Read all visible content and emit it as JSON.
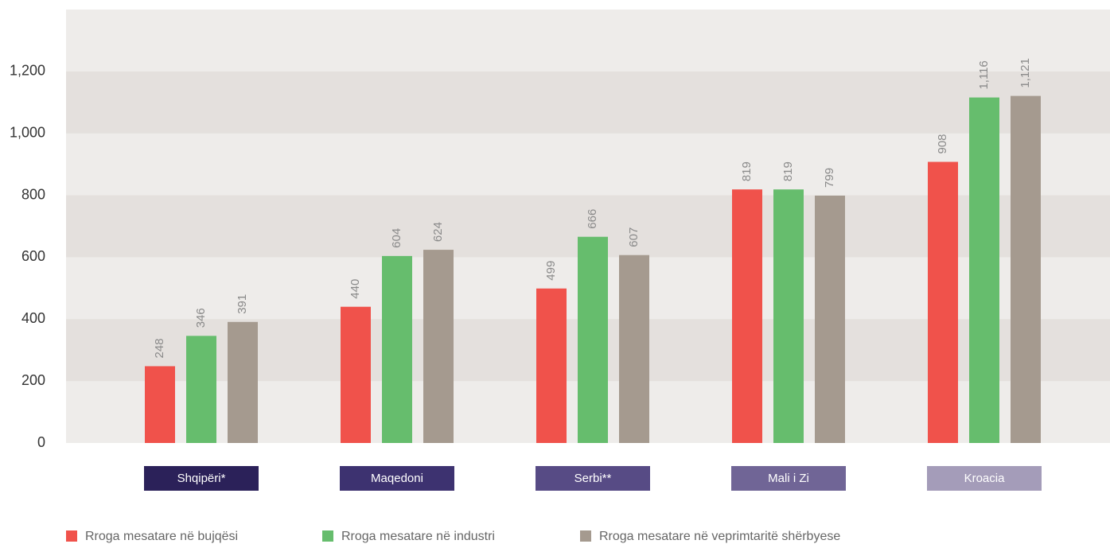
{
  "chart_data": {
    "type": "bar",
    "categories": [
      "Shqipëri*",
      "Maqedoni",
      "Serbi**",
      "Mali i Zi",
      "Kroacia"
    ],
    "category_colors": [
      "#2b2159",
      "#3d3270",
      "#574b85",
      "#706596",
      "#a49cb9"
    ],
    "series": [
      {
        "name": "Rroga mesatare në bujqësi",
        "color": "#f0524b",
        "values": [
          248,
          440,
          499,
          819,
          908
        ],
        "value_labels": [
          "248",
          "440",
          "499",
          "819",
          "908"
        ]
      },
      {
        "name": "Rroga mesatare në industri",
        "color": "#66bd6d",
        "values": [
          346,
          604,
          666,
          819,
          1116
        ],
        "value_labels": [
          "346",
          "604",
          "666",
          "819",
          "1,116"
        ]
      },
      {
        "name": "Rroga mesatare në veprimtaritë shërbyese",
        "color": "#a59a8f",
        "values": [
          391,
          624,
          607,
          799,
          1121
        ],
        "value_labels": [
          "391",
          "624",
          "607",
          "799",
          "1,121"
        ]
      }
    ],
    "ylim": [
      0,
      1400
    ],
    "yticks": [
      0,
      200,
      400,
      600,
      800,
      {
        "value": 1000,
        "label": "1,000"
      },
      {
        "value": 1200,
        "label": "1,200"
      }
    ],
    "grid": "bands"
  }
}
